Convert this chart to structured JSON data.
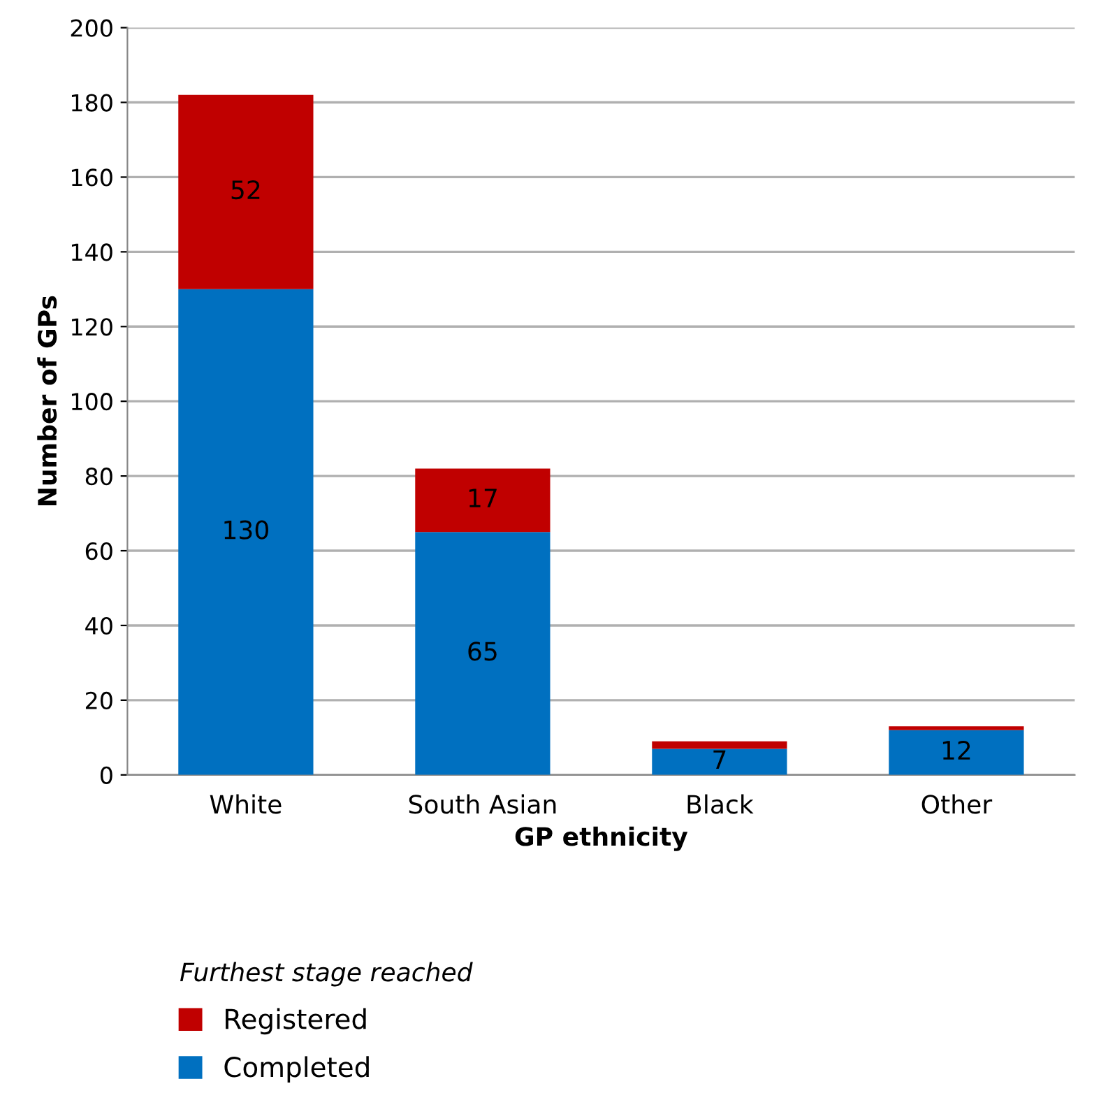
{
  "chart_data": {
    "type": "bar",
    "stacked": true,
    "xlabel": "GP ethnicity",
    "ylabel": "Number of GPs",
    "legend_title": "Furthest stage reached",
    "categories": [
      "White",
      "South Asian",
      "Black",
      "Other"
    ],
    "series": [
      {
        "name": "Completed",
        "color": "#0070c0",
        "values": [
          130,
          65,
          7,
          12
        ],
        "value_labels": [
          "130",
          "65",
          "7",
          "12"
        ]
      },
      {
        "name": "Registered",
        "color": "#c00000",
        "values": [
          52,
          17,
          2,
          1
        ],
        "value_labels": [
          "52",
          "17",
          null,
          null
        ]
      }
    ],
    "ylim": [
      0,
      200
    ],
    "yticks": [
      0,
      20,
      40,
      60,
      80,
      100,
      120,
      140,
      160,
      180,
      200
    ],
    "grid": "y",
    "legend": "bottom"
  }
}
